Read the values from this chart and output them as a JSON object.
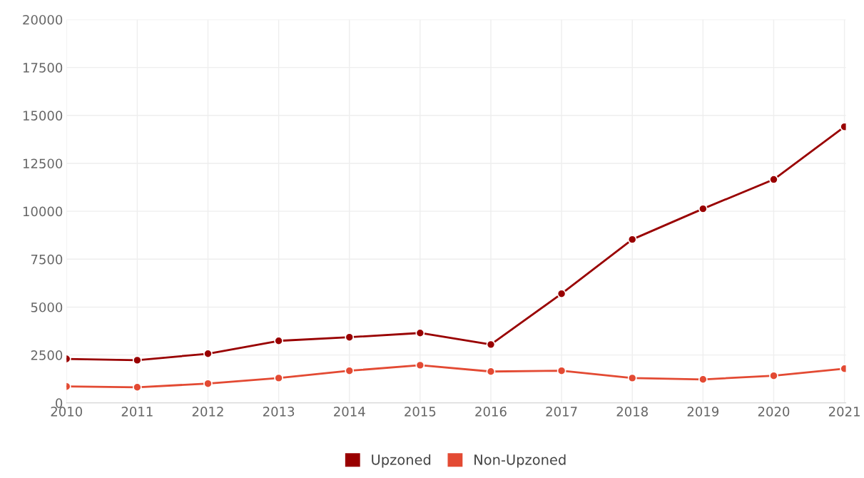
{
  "chart_data": {
    "type": "line",
    "categories": [
      "2010",
      "2011",
      "2012",
      "2013",
      "2014",
      "2015",
      "2016",
      "2017",
      "2018",
      "2019",
      "2020",
      "2021"
    ],
    "series": [
      {
        "name": "Upzoned",
        "color": "#990000",
        "values": [
          2300,
          2230,
          2570,
          3240,
          3430,
          3650,
          3050,
          5700,
          8530,
          10130,
          11660,
          14410
        ]
      },
      {
        "name": "Non-Upzoned",
        "color": "#e34a33",
        "values": [
          860,
          820,
          1010,
          1300,
          1680,
          1970,
          1640,
          1680,
          1300,
          1230,
          1420,
          1790
        ]
      }
    ],
    "ylim": [
      0,
      20000
    ],
    "yticks": [
      0,
      2500,
      5000,
      7500,
      10000,
      12500,
      15000,
      17500,
      20000
    ],
    "grid": true,
    "legend": "bottom",
    "marker": "circle",
    "line_style": "solid"
  }
}
